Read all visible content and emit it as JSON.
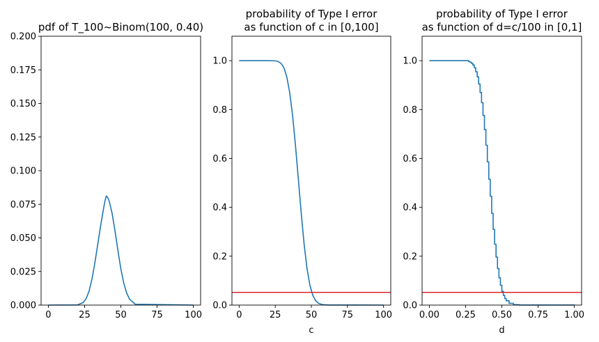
{
  "colors": {
    "curve": "#1f77b4",
    "threshold": "#d62728",
    "axis": "#000000",
    "background": "#ffffff"
  },
  "chart_data": [
    {
      "type": "line",
      "title": "pdf of T_100~Binom(100, 0.40)",
      "xlabel": "",
      "ylabel": "",
      "xlim": [
        -5,
        105
      ],
      "ylim": [
        0,
        0.2
      ],
      "xticks": [
        0,
        25,
        50,
        75,
        100
      ],
      "xtick_labels": [
        "0",
        "25",
        "50",
        "75",
        "100"
      ],
      "yticks": [
        0,
        0.025,
        0.05,
        0.075,
        0.1,
        0.125,
        0.15,
        0.175,
        0.2
      ],
      "ytick_labels": [
        "0.000",
        "0.025",
        "0.050",
        "0.075",
        "0.100",
        "0.125",
        "0.150",
        "0.175",
        "0.200"
      ],
      "grid": false,
      "series": [
        {
          "style": "line",
          "color": "#1f77b4",
          "x": [
            0,
            20,
            24,
            26,
            28,
            30,
            32,
            34,
            36,
            38,
            39,
            40,
            41,
            42,
            44,
            46,
            48,
            50,
            52,
            54,
            56,
            60,
            100
          ],
          "y": [
            0,
            0.00012,
            0.0019,
            0.0047,
            0.0101,
            0.0189,
            0.0308,
            0.0446,
            0.0586,
            0.0713,
            0.0772,
            0.0812,
            0.0799,
            0.0772,
            0.0681,
            0.055,
            0.0404,
            0.027,
            0.0163,
            0.009,
            0.0044,
            0.0006,
            0
          ]
        }
      ]
    },
    {
      "type": "line",
      "title": "probability of Type I error\nas function of c in [0,100]",
      "xlabel": "c",
      "ylabel": "",
      "xlim": [
        -5,
        105
      ],
      "ylim": [
        0,
        1.1
      ],
      "xticks": [
        0,
        25,
        50,
        75,
        100
      ],
      "xtick_labels": [
        "0",
        "25",
        "50",
        "75",
        "100"
      ],
      "yticks": [
        0,
        0.2,
        0.4,
        0.6,
        0.8,
        1.0
      ],
      "ytick_labels": [
        "0.0",
        "0.2",
        "0.4",
        "0.6",
        "0.8",
        "1.0"
      ],
      "grid": false,
      "hline": {
        "y": 0.052,
        "color": "#d62728"
      },
      "series": [
        {
          "style": "line",
          "color": "#1f77b4",
          "x": [
            0,
            20,
            25,
            27,
            29,
            31,
            33,
            35,
            37,
            39,
            41,
            43,
            45,
            47,
            49,
            51,
            53,
            55,
            58,
            62,
            100
          ],
          "y": [
            1.0,
            1.0,
            0.9992,
            0.9966,
            0.9891,
            0.9712,
            0.9337,
            0.8698,
            0.7759,
            0.654,
            0.5151,
            0.3752,
            0.249,
            0.1495,
            0.0812,
            0.0398,
            0.0176,
            0.0071,
            0.0015,
            0.0001,
            0
          ]
        }
      ]
    },
    {
      "type": "line",
      "title": "probability of Type I error\nas function of d=c/100 in [0,1]",
      "xlabel": "d",
      "ylabel": "",
      "xlim": [
        -0.05,
        1.05
      ],
      "ylim": [
        0,
        1.1
      ],
      "xticks": [
        0,
        0.25,
        0.5,
        0.75,
        1.0
      ],
      "xtick_labels": [
        "0.00",
        "0.25",
        "0.50",
        "0.75",
        "1.00"
      ],
      "yticks": [
        0,
        0.2,
        0.4,
        0.6,
        0.8,
        1.0
      ],
      "ytick_labels": [
        "0.0",
        "0.2",
        "0.4",
        "0.6",
        "0.8",
        "1.0"
      ],
      "grid": false,
      "hline": {
        "y": 0.052,
        "color": "#d62728"
      },
      "series": [
        {
          "style": "step",
          "color": "#1f77b4",
          "x": [
            0,
            0.25,
            0.27,
            0.28,
            0.29,
            0.3,
            0.31,
            0.32,
            0.33,
            0.34,
            0.35,
            0.36,
            0.37,
            0.38,
            0.39,
            0.4,
            0.41,
            0.42,
            0.43,
            0.44,
            0.45,
            0.46,
            0.47,
            0.48,
            0.49,
            0.5,
            0.51,
            0.52,
            0.53,
            0.55,
            0.58,
            0.62,
            1.0
          ],
          "y": [
            1.0,
            1.0,
            0.9966,
            0.9935,
            0.9891,
            0.9822,
            0.9712,
            0.9545,
            0.9337,
            0.9045,
            0.8698,
            0.8281,
            0.7759,
            0.7179,
            0.654,
            0.586,
            0.5151,
            0.4453,
            0.3752,
            0.3096,
            0.249,
            0.1964,
            0.1495,
            0.1116,
            0.0812,
            0.0566,
            0.0398,
            0.0267,
            0.0176,
            0.0071,
            0.0015,
            0.0001,
            0
          ]
        }
      ]
    }
  ]
}
